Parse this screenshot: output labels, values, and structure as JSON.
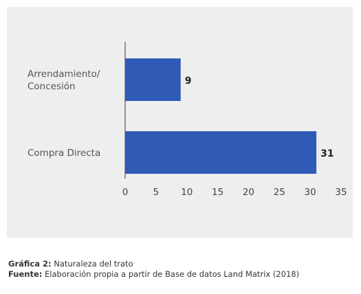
{
  "chart_data": {
    "type": "bar",
    "orientation": "horizontal",
    "categories": [
      [
        "Arrendamiento/",
        "Concesión"
      ],
      [
        "Compra Directa"
      ]
    ],
    "values": [
      9,
      31
    ],
    "data_labels": [
      "9",
      "31"
    ],
    "xlim": [
      0,
      35
    ],
    "xticks": [
      0,
      5,
      10,
      15,
      20,
      25,
      30,
      35
    ],
    "bar_color": "#2f5bb7",
    "grid": false
  },
  "caption": {
    "figure_label": "Gráfica 2:",
    "figure_title": "Naturaleza del trato",
    "source_label": "Fuente:",
    "source_text": "Elaboración propia a partir de Base de datos Land Matrix (2018)"
  }
}
